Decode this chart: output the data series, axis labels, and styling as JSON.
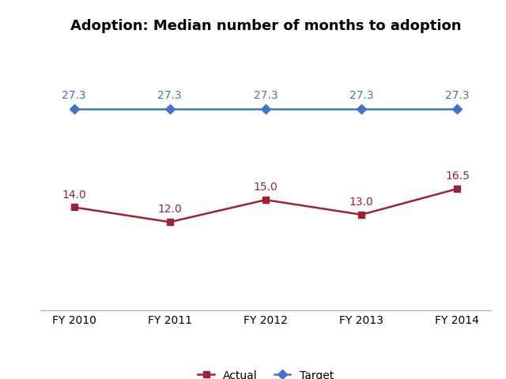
{
  "title": "Adoption: Median number of months to adoption",
  "categories": [
    "FY 2010",
    "FY 2011",
    "FY 2012",
    "FY 2013",
    "FY 2014"
  ],
  "actual_values": [
    14.0,
    12.0,
    15.0,
    13.0,
    16.5
  ],
  "target_values": [
    27.3,
    27.3,
    27.3,
    27.3,
    27.3
  ],
  "actual_color": "#9B2335",
  "target_color": "#4472C4",
  "actual_label": "Actual",
  "target_label": "Target",
  "marker_actual": "s",
  "marker_target": "D",
  "title_fontsize": 13,
  "label_fontsize": 10,
  "annotation_fontsize": 10,
  "ylim": [
    0,
    36
  ],
  "background_color": "#FFFFFF"
}
